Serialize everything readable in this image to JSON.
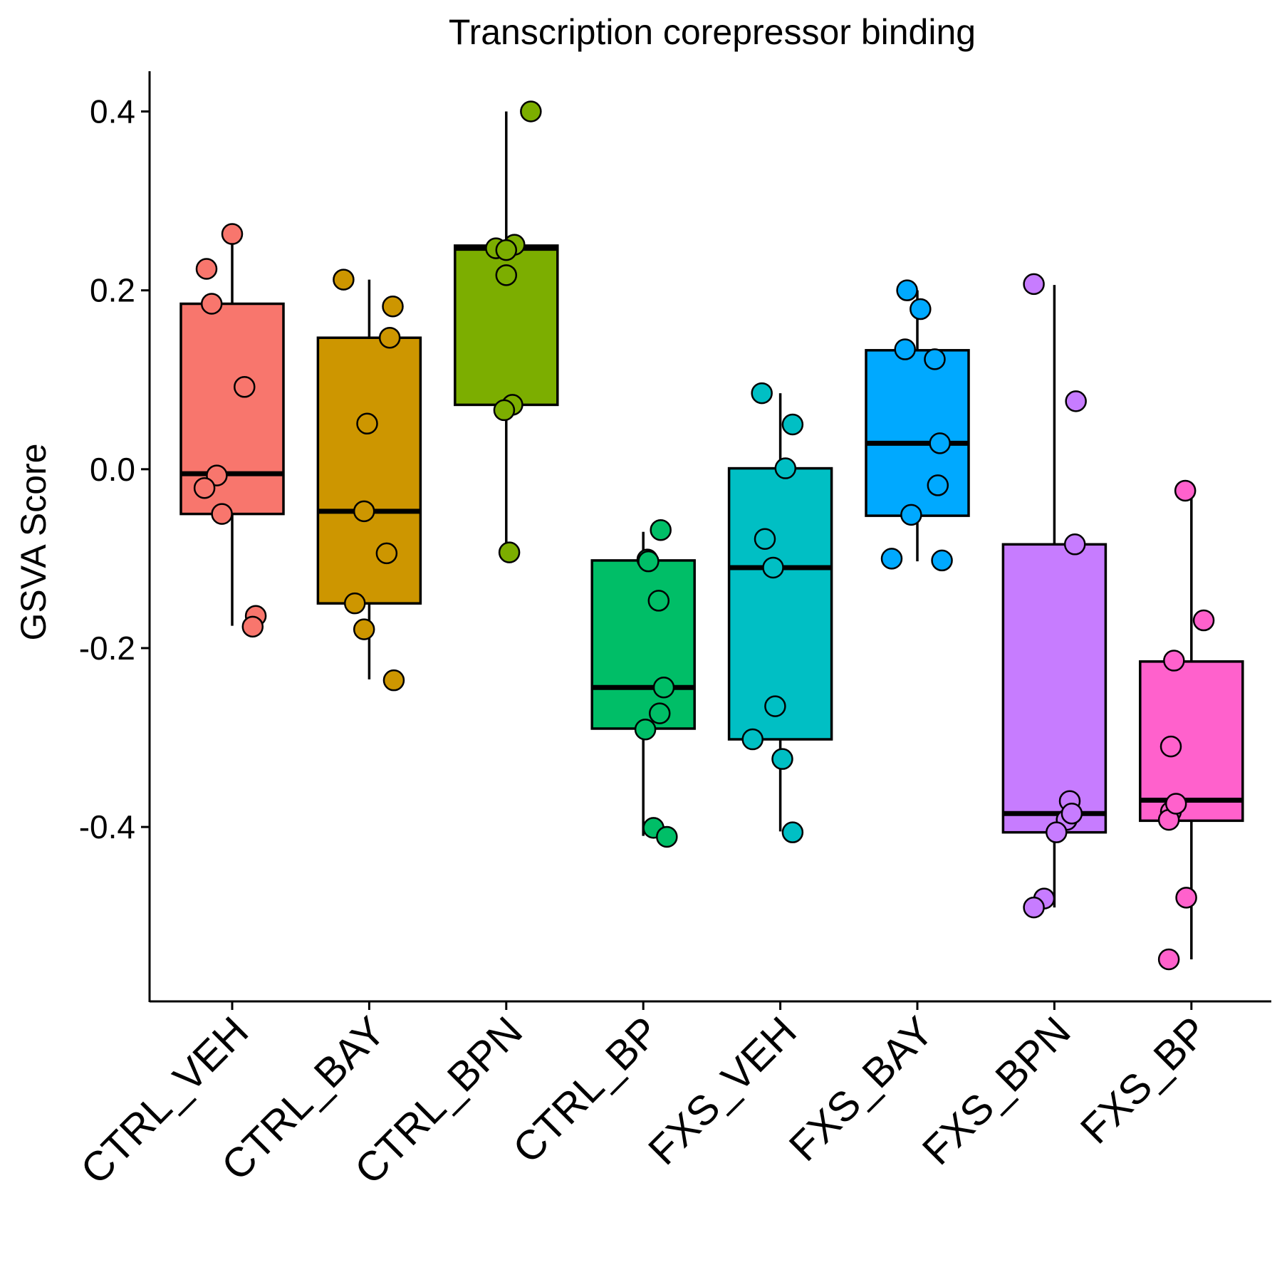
{
  "chart_data": {
    "type": "box",
    "title": "Transcription corepressor binding",
    "xlabel": "",
    "ylabel": "GSVA Score",
    "ylim": [
      -0.595,
      0.445
    ],
    "yticks": [
      -0.4,
      -0.2,
      0.0,
      0.2,
      0.4
    ],
    "ytick_labels": [
      "-0.4",
      "-0.2",
      "0.0",
      "0.2",
      "0.4"
    ],
    "grid": false,
    "legend": "none",
    "categories": [
      "CTRL_VEH",
      "CTRL_BAY",
      "CTRL_BPN",
      "CTRL_BP",
      "FXS_VEH",
      "FXS_BAY",
      "FXS_BPN",
      "FXS_BP"
    ],
    "groups": [
      {
        "name": "CTRL_VEH",
        "color": "#F8766D",
        "whisker_low": -0.175,
        "q1": -0.05,
        "median": -0.005,
        "q3": 0.185,
        "whisker_high": 0.265,
        "points": [
          [
            0.0,
            0.263
          ],
          [
            -0.25,
            0.224
          ],
          [
            -0.2,
            0.185
          ],
          [
            0.12,
            0.092
          ],
          [
            -0.15,
            -0.007
          ],
          [
            -0.27,
            -0.021
          ],
          [
            -0.1,
            -0.05
          ],
          [
            0.23,
            -0.164
          ],
          [
            0.2,
            -0.176
          ]
        ]
      },
      {
        "name": "CTRL_BAY",
        "color": "#CD9600",
        "whisker_low": -0.235,
        "q1": -0.15,
        "median": -0.047,
        "q3": 0.147,
        "whisker_high": 0.212,
        "points": [
          [
            -0.25,
            0.212
          ],
          [
            0.23,
            0.182
          ],
          [
            0.2,
            0.147
          ],
          [
            -0.02,
            0.051
          ],
          [
            -0.05,
            -0.047
          ],
          [
            0.17,
            -0.094
          ],
          [
            -0.14,
            -0.15
          ],
          [
            -0.05,
            -0.179
          ],
          [
            0.24,
            -0.236
          ]
        ]
      },
      {
        "name": "CTRL_BPN",
        "color": "#7CAE00",
        "whisker_low": -0.093,
        "q1": 0.072,
        "median": 0.247,
        "q3": 0.25,
        "whisker_high": 0.4,
        "points": [
          [
            0.24,
            0.4
          ],
          [
            0.08,
            0.251
          ],
          [
            -0.1,
            0.247
          ],
          [
            0.0,
            0.245
          ],
          [
            0.0,
            0.217
          ],
          [
            0.06,
            0.072
          ],
          [
            -0.02,
            0.066
          ],
          [
            0.03,
            -0.093
          ]
        ]
      },
      {
        "name": "CTRL_BP",
        "color": "#00BE67",
        "whisker_low": -0.41,
        "q1": -0.29,
        "median": -0.244,
        "q3": -0.102,
        "whisker_high": -0.07,
        "points": [
          [
            0.17,
            -0.068
          ],
          [
            0.04,
            -0.101
          ],
          [
            0.05,
            -0.103
          ],
          [
            0.15,
            -0.147
          ],
          [
            0.2,
            -0.244
          ],
          [
            0.16,
            -0.273
          ],
          [
            0.02,
            -0.291
          ],
          [
            0.1,
            -0.401
          ],
          [
            0.23,
            -0.411
          ]
        ]
      },
      {
        "name": "FXS_VEH",
        "color": "#00BFC4",
        "whisker_low": -0.405,
        "q1": -0.302,
        "median": -0.11,
        "q3": 0.001,
        "whisker_high": 0.085,
        "points": [
          [
            -0.18,
            0.085
          ],
          [
            0.12,
            0.05
          ],
          [
            0.05,
            0.001
          ],
          [
            -0.15,
            -0.078
          ],
          [
            -0.07,
            -0.11
          ],
          [
            -0.05,
            -0.265
          ],
          [
            -0.27,
            -0.302
          ],
          [
            0.02,
            -0.324
          ],
          [
            0.12,
            -0.406
          ]
        ]
      },
      {
        "name": "FXS_BAY",
        "color": "#00A9FF",
        "whisker_low": -0.103,
        "q1": -0.052,
        "median": 0.029,
        "q3": 0.133,
        "whisker_high": 0.2,
        "points": [
          [
            -0.1,
            0.2
          ],
          [
            0.03,
            0.179
          ],
          [
            -0.12,
            0.134
          ],
          [
            0.17,
            0.123
          ],
          [
            0.22,
            0.029
          ],
          [
            0.2,
            -0.018
          ],
          [
            -0.06,
            -0.051
          ],
          [
            -0.25,
            -0.1
          ],
          [
            0.24,
            -0.102
          ]
        ]
      },
      {
        "name": "FXS_BPN",
        "color": "#C77CFF",
        "whisker_low": -0.49,
        "q1": -0.406,
        "median": -0.385,
        "q3": -0.084,
        "whisker_high": 0.206,
        "points": [
          [
            -0.2,
            0.207
          ],
          [
            0.21,
            0.076
          ],
          [
            0.2,
            -0.084
          ],
          [
            0.15,
            -0.371
          ],
          [
            0.12,
            -0.392
          ],
          [
            0.17,
            -0.385
          ],
          [
            0.02,
            -0.406
          ],
          [
            -0.1,
            -0.48
          ],
          [
            -0.2,
            -0.49
          ]
        ]
      },
      {
        "name": "FXS_BP",
        "color": "#FF61CC",
        "whisker_low": -0.548,
        "q1": -0.393,
        "median": -0.37,
        "q3": -0.215,
        "whisker_high": -0.032,
        "points": [
          [
            -0.06,
            -0.024
          ],
          [
            0.12,
            -0.169
          ],
          [
            -0.17,
            -0.214
          ],
          [
            -0.2,
            -0.31
          ],
          [
            -0.2,
            -0.383
          ],
          [
            -0.22,
            -0.392
          ],
          [
            -0.15,
            -0.374
          ],
          [
            -0.05,
            -0.479
          ],
          [
            -0.22,
            -0.548
          ]
        ]
      }
    ]
  }
}
